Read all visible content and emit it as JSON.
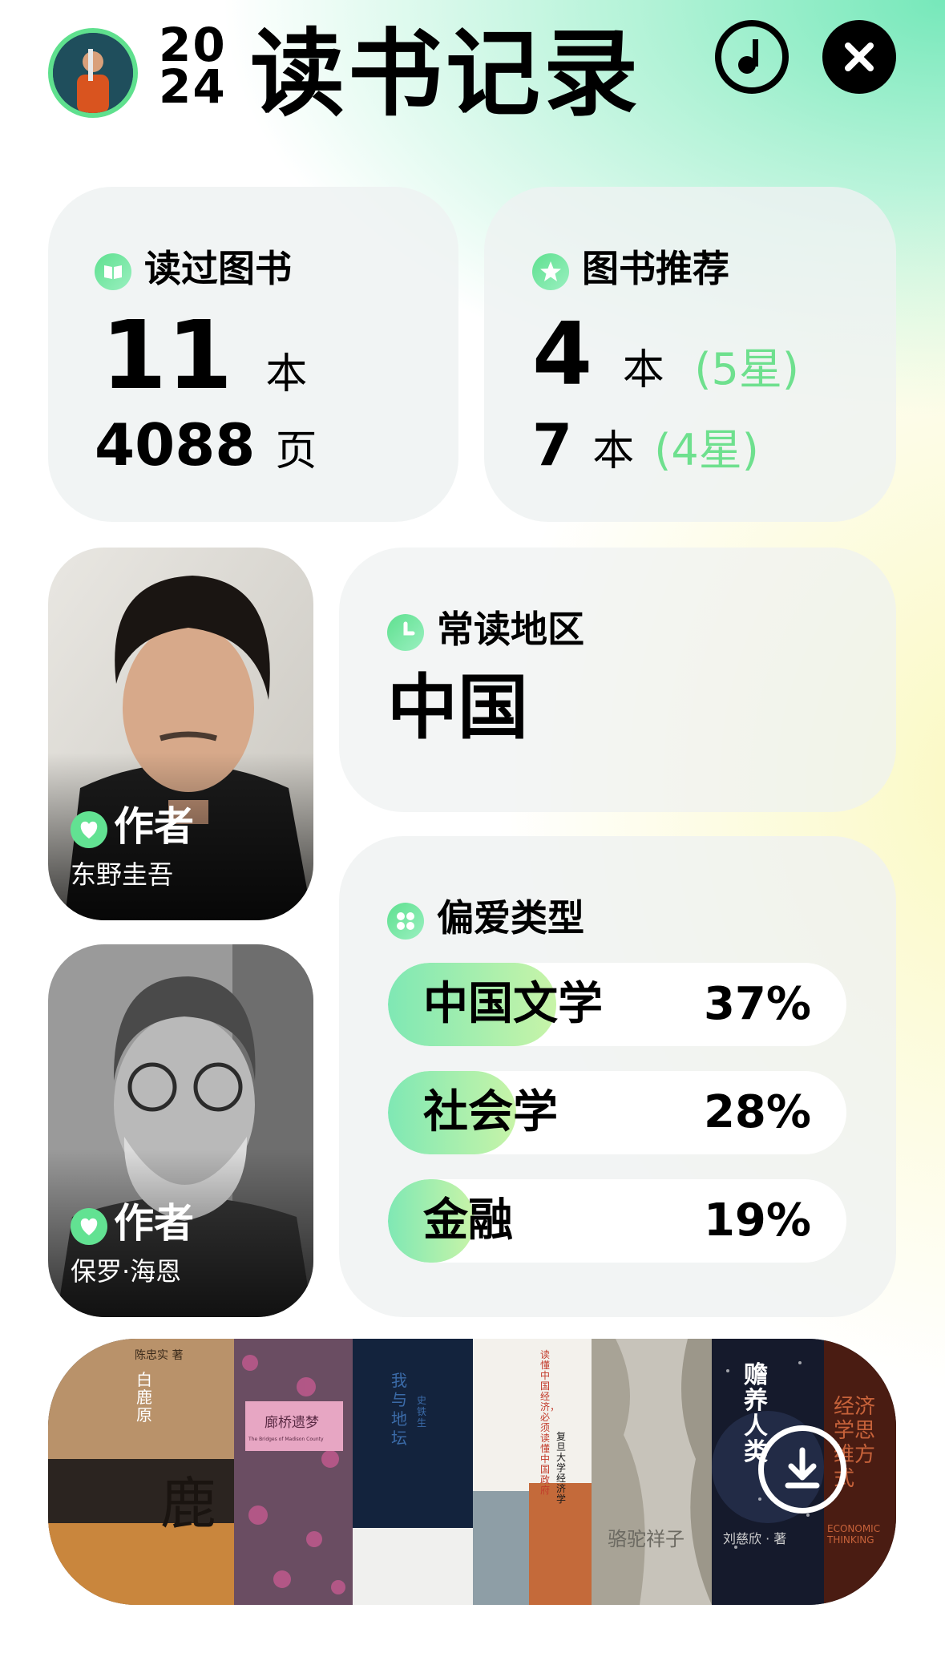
{
  "header": {
    "year_line1": "20",
    "year_line2": "24",
    "title": "读书记录"
  },
  "read_card": {
    "label": "读过图书",
    "books_count": "11",
    "books_unit": "本",
    "pages_count": "4088",
    "pages_unit": "页"
  },
  "recommend_card": {
    "label": "图书推荐",
    "five_star_count": "4",
    "five_star_unit": "本",
    "five_star_note": "(5星)",
    "four_star_count": "7",
    "four_star_unit": "本",
    "four_star_note": "(4星)"
  },
  "region_card": {
    "label": "常读地区",
    "value": "中国"
  },
  "authors": [
    {
      "label": "作者",
      "name": "东野圭吾"
    },
    {
      "label": "作者",
      "name": "保罗·海恩"
    }
  ],
  "genre_card": {
    "label": "偏爱类型",
    "items": [
      {
        "name": "中国文学",
        "percent": "37%",
        "fill": 0.37
      },
      {
        "name": "社会学",
        "percent": "28%",
        "fill": 0.28
      },
      {
        "name": "金融",
        "percent": "19%",
        "fill": 0.19
      }
    ]
  },
  "books": [
    {
      "title": "白鹿原",
      "author": "陈忠实 著",
      "subtitle": "鹿"
    },
    {
      "title": "廊桥遗梦",
      "subtitle": "The Bridges of Madison County"
    },
    {
      "title": "我与地坛",
      "author": "史铁生"
    },
    {
      "title": "读懂中国经济，必须读懂中国政府",
      "subtitle": "复旦大学经济学"
    },
    {
      "title": "骆驼祥子"
    },
    {
      "title": "赡养人类",
      "author": "刘慈欣 · 著"
    },
    {
      "title": "经济学思维方式",
      "subtitle": "ECONOMIC THINKING"
    }
  ],
  "colors": {
    "accent_green": "#6ee08e",
    "card_bg": "#eef1f1",
    "header_gradient": "#76e8ba"
  },
  "icons": {
    "music": "music-note-icon",
    "close": "close-icon",
    "download": "download-icon"
  }
}
